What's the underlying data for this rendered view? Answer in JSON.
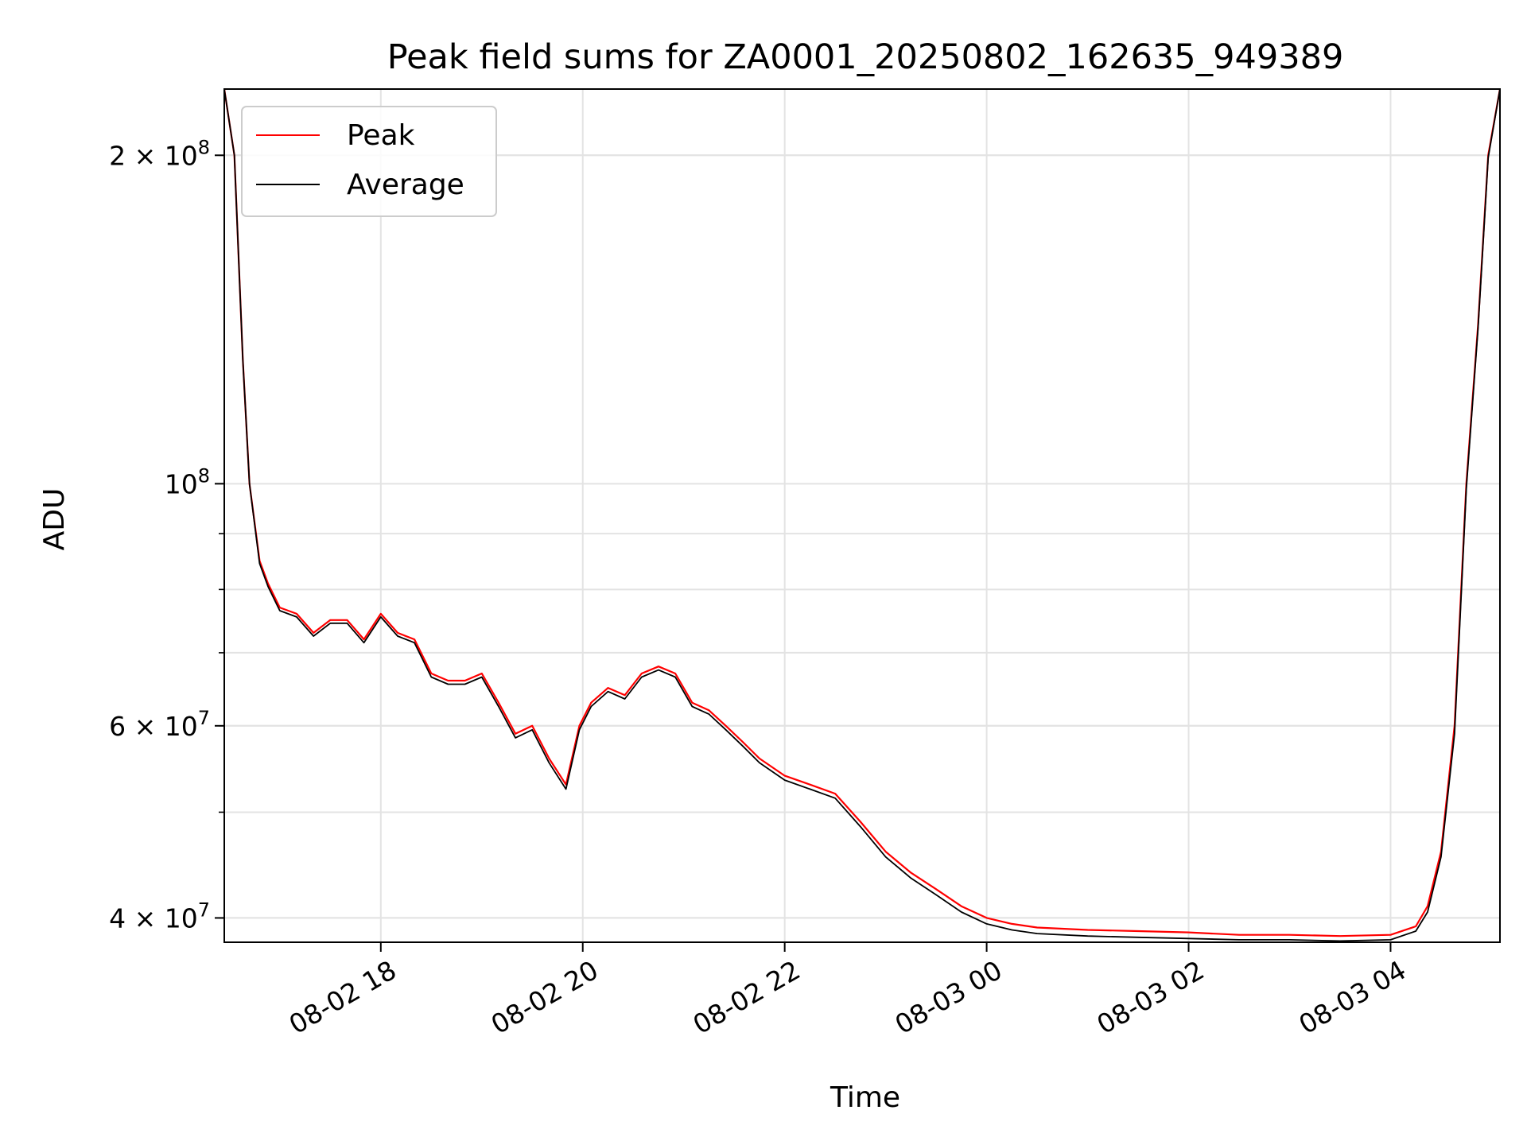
{
  "chart_data": {
    "type": "line",
    "title": "Peak field sums for ZA0001_20250802_162635_949389",
    "xlabel": "Time",
    "ylabel": "ADU",
    "yscale": "log",
    "xlim": [
      "2025-08-02 16:27",
      "2025-08-03 05:05"
    ],
    "ylim": [
      38000000,
      230000000
    ],
    "x_ticks": [
      "08-02 18",
      "08-02 20",
      "08-02 22",
      "08-03 00",
      "08-03 02",
      "08-03 04"
    ],
    "y_ticks": [
      {
        "value": 40000000,
        "mantissa": "4",
        "exp": "7"
      },
      {
        "value": 60000000,
        "mantissa": "6",
        "exp": "7"
      },
      {
        "value": 100000000,
        "mantissa": "",
        "exp": "8"
      },
      {
        "value": 200000000,
        "mantissa": "2",
        "exp": "8"
      }
    ],
    "grid": true,
    "legend_position": "upper-left",
    "series": [
      {
        "name": "Peak",
        "color": "#ff0000",
        "x": [
          "2025-08-02 16:27",
          "2025-08-02 16:33",
          "2025-08-02 16:38",
          "2025-08-02 16:42",
          "2025-08-02 16:48",
          "2025-08-02 16:53",
          "2025-08-02 17:00",
          "2025-08-02 17:10",
          "2025-08-02 17:20",
          "2025-08-02 17:30",
          "2025-08-02 17:40",
          "2025-08-02 17:50",
          "2025-08-02 18:00",
          "2025-08-02 18:10",
          "2025-08-02 18:20",
          "2025-08-02 18:30",
          "2025-08-02 18:40",
          "2025-08-02 18:50",
          "2025-08-02 19:00",
          "2025-08-02 19:10",
          "2025-08-02 19:20",
          "2025-08-02 19:30",
          "2025-08-02 19:40",
          "2025-08-02 19:50",
          "2025-08-02 19:58",
          "2025-08-02 20:05",
          "2025-08-02 20:15",
          "2025-08-02 20:25",
          "2025-08-02 20:35",
          "2025-08-02 20:45",
          "2025-08-02 20:55",
          "2025-08-02 21:05",
          "2025-08-02 21:15",
          "2025-08-02 21:25",
          "2025-08-02 21:35",
          "2025-08-02 21:45",
          "2025-08-02 22:00",
          "2025-08-02 22:15",
          "2025-08-02 22:30",
          "2025-08-02 22:45",
          "2025-08-02 23:00",
          "2025-08-02 23:15",
          "2025-08-02 23:30",
          "2025-08-02 23:45",
          "2025-08-03 00:00",
          "2025-08-03 00:15",
          "2025-08-03 00:30",
          "2025-08-03 01:00",
          "2025-08-03 01:30",
          "2025-08-03 02:00",
          "2025-08-03 02:30",
          "2025-08-03 03:00",
          "2025-08-03 03:30",
          "2025-08-03 04:00",
          "2025-08-03 04:15",
          "2025-08-03 04:22",
          "2025-08-03 04:30",
          "2025-08-03 04:38",
          "2025-08-03 04:45",
          "2025-08-03 04:52",
          "2025-08-03 04:58",
          "2025-08-03 05:05"
        ],
        "values": [
          230000000,
          200000000,
          130000000,
          100000000,
          85000000,
          81000000,
          77000000,
          76000000,
          73000000,
          75000000,
          75000000,
          72000000,
          76000000,
          73000000,
          72000000,
          67000000,
          66000000,
          66000000,
          67000000,
          63000000,
          59000000,
          60000000,
          56000000,
          53000000,
          60000000,
          63000000,
          65000000,
          64000000,
          67000000,
          68000000,
          67000000,
          63000000,
          62000000,
          60000000,
          58000000,
          56000000,
          54000000,
          53000000,
          52000000,
          49000000,
          46000000,
          44000000,
          42500000,
          41000000,
          40000000,
          39500000,
          39200000,
          39000000,
          38900000,
          38800000,
          38600000,
          38600000,
          38500000,
          38600000,
          39300000,
          41000000,
          46000000,
          60000000,
          100000000,
          140000000,
          200000000,
          230000000
        ]
      },
      {
        "name": "Average",
        "color": "#000000",
        "x": [
          "2025-08-02 16:27",
          "2025-08-02 16:33",
          "2025-08-02 16:38",
          "2025-08-02 16:42",
          "2025-08-02 16:48",
          "2025-08-02 16:53",
          "2025-08-02 17:00",
          "2025-08-02 17:10",
          "2025-08-02 17:20",
          "2025-08-02 17:30",
          "2025-08-02 17:40",
          "2025-08-02 17:50",
          "2025-08-02 18:00",
          "2025-08-02 18:10",
          "2025-08-02 18:20",
          "2025-08-02 18:30",
          "2025-08-02 18:40",
          "2025-08-02 18:50",
          "2025-08-02 19:00",
          "2025-08-02 19:10",
          "2025-08-02 19:20",
          "2025-08-02 19:30",
          "2025-08-02 19:40",
          "2025-08-02 19:50",
          "2025-08-02 19:58",
          "2025-08-02 20:05",
          "2025-08-02 20:15",
          "2025-08-02 20:25",
          "2025-08-02 20:35",
          "2025-08-02 20:45",
          "2025-08-02 20:55",
          "2025-08-02 21:05",
          "2025-08-02 21:15",
          "2025-08-02 21:25",
          "2025-08-02 21:35",
          "2025-08-02 21:45",
          "2025-08-02 22:00",
          "2025-08-02 22:15",
          "2025-08-02 22:30",
          "2025-08-02 22:45",
          "2025-08-02 23:00",
          "2025-08-02 23:15",
          "2025-08-02 23:30",
          "2025-08-02 23:45",
          "2025-08-03 00:00",
          "2025-08-03 00:15",
          "2025-08-03 00:30",
          "2025-08-03 01:00",
          "2025-08-03 01:30",
          "2025-08-03 02:00",
          "2025-08-03 02:30",
          "2025-08-03 03:00",
          "2025-08-03 03:30",
          "2025-08-03 04:00",
          "2025-08-03 04:15",
          "2025-08-03 04:22",
          "2025-08-03 04:30",
          "2025-08-03 04:38",
          "2025-08-03 04:45",
          "2025-08-03 04:52",
          "2025-08-03 04:58",
          "2025-08-03 05:05"
        ],
        "values": [
          230000000,
          200000000,
          130000000,
          100000000,
          84500000,
          80500000,
          76500000,
          75500000,
          72500000,
          74500000,
          74500000,
          71500000,
          75500000,
          72500000,
          71500000,
          66500000,
          65500000,
          65500000,
          66500000,
          62500000,
          58500000,
          59500000,
          55500000,
          52500000,
          59500000,
          62500000,
          64500000,
          63500000,
          66500000,
          67500000,
          66500000,
          62500000,
          61500000,
          59500000,
          57500000,
          55500000,
          53500000,
          52500000,
          51500000,
          48500000,
          45500000,
          43500000,
          42000000,
          40500000,
          39500000,
          39000000,
          38700000,
          38500000,
          38400000,
          38300000,
          38200000,
          38200000,
          38100000,
          38200000,
          38900000,
          40500000,
          45500000,
          59000000,
          99000000,
          139000000,
          199000000,
          230000000
        ]
      }
    ]
  }
}
